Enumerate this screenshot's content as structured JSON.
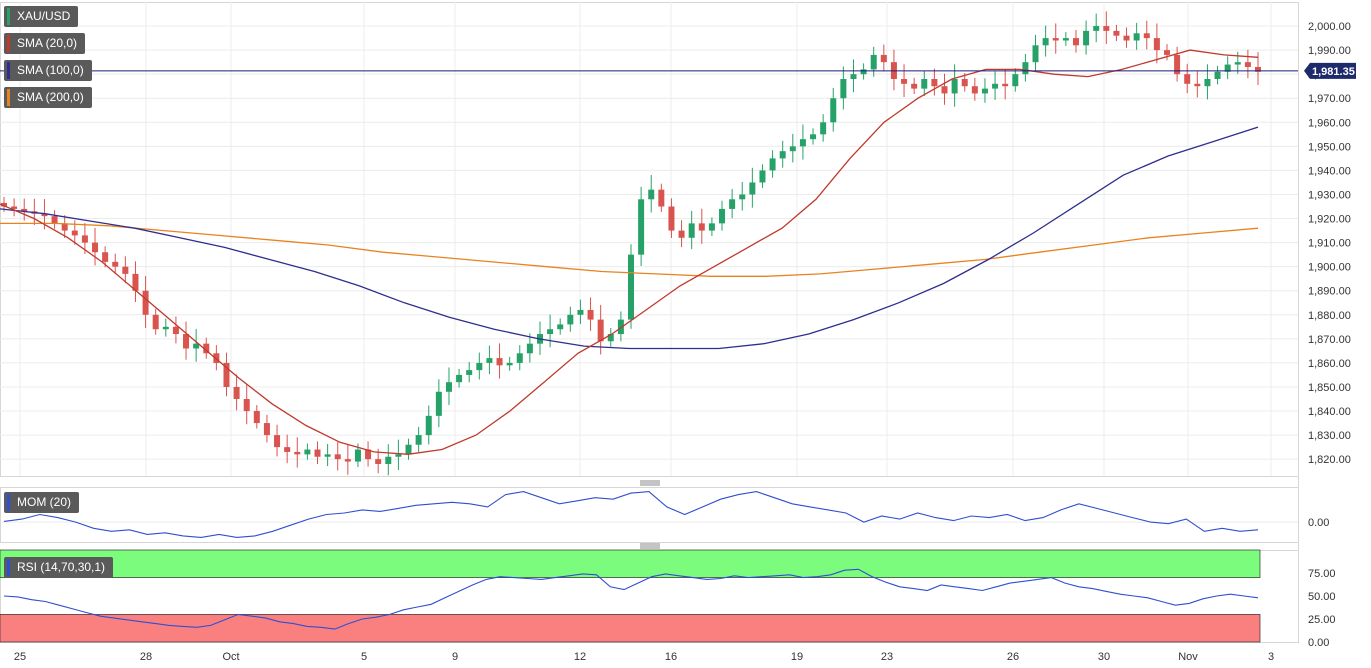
{
  "symbol": "XAU/USD",
  "indicators": {
    "sma20": {
      "label": "SMA (20,0)",
      "color": "#c0392b"
    },
    "sma100": {
      "label": "SMA (100,0)",
      "color": "#2e2e8f"
    },
    "sma200": {
      "label": "SMA (200,0)",
      "color": "#e8831f"
    },
    "mom": {
      "label": "MOM (20)",
      "color": "#2f4fd0"
    },
    "rsi": {
      "label": "RSI (14,70,30,1)",
      "color": "#2f4fd0"
    }
  },
  "colors": {
    "up": "#26a269",
    "down": "#d9534f",
    "rsi_overbought": "#7cfc7c",
    "rsi_oversold": "#fa8080",
    "current_price_line": "#1b1b7a"
  },
  "current_price_label": "1,981.35",
  "chart_data": [
    {
      "type": "candlestick",
      "title": "XAU/USD",
      "x_tick_labels": [
        "25",
        "28",
        "Oct",
        "5",
        "9",
        "12",
        "16",
        "19",
        "23",
        "26",
        "30",
        "Nov",
        "3"
      ],
      "y_tick_labels": [
        "1,820.00",
        "1,830.00",
        "1,840.00",
        "1,850.00",
        "1,860.00",
        "1,870.00",
        "1,880.00",
        "1,890.00",
        "1,900.00",
        "1,910.00",
        "1,920.00",
        "1,930.00",
        "1,940.00",
        "1,950.00",
        "1,960.00",
        "1,970.00",
        "1,980.00",
        "1,990.00",
        "2,000.00"
      ],
      "ylim": [
        1813,
        2010
      ],
      "current_price": 1981.35,
      "close_path": [
        1925,
        1924,
        1923,
        1922,
        1921,
        1918,
        1915,
        1913,
        1910,
        1906,
        1902,
        1900,
        1897,
        1890,
        1880,
        1874,
        1875,
        1872,
        1866,
        1868,
        1864,
        1860,
        1850,
        1845,
        1840,
        1835,
        1830,
        1825,
        1823,
        1822,
        1824,
        1821,
        1822,
        1820,
        1819,
        1824,
        1820,
        1818,
        1821,
        1822,
        1826,
        1830,
        1838,
        1848,
        1852,
        1855,
        1857,
        1860,
        1862,
        1859,
        1860,
        1864,
        1868,
        1872,
        1874,
        1876,
        1880,
        1882,
        1878,
        1869,
        1872,
        1878,
        1905,
        1928,
        1932,
        1925,
        1915,
        1912,
        1918,
        1915,
        1918,
        1924,
        1928,
        1930,
        1935,
        1940,
        1945,
        1948,
        1950,
        1953,
        1955,
        1960,
        1970,
        1978,
        1980,
        1982,
        1988,
        1985,
        1978,
        1976,
        1974,
        1978,
        1975,
        1972,
        1978,
        1975,
        1972,
        1974,
        1976,
        1975,
        1980,
        1985,
        1992,
        1995,
        1994,
        1995,
        1992,
        1998,
        2000,
        1998,
        1996,
        1994,
        1997,
        1995,
        1990,
        1988,
        1980,
        1976,
        1975,
        1978,
        1981,
        1984,
        1985,
        1983,
        1981
      ],
      "series": [
        {
          "name": "SMA (20,0)",
          "values": [
            1926,
            1920,
            1912,
            1902,
            1890,
            1878,
            1866,
            1854,
            1843,
            1834,
            1827,
            1823,
            1822,
            1824,
            1830,
            1840,
            1852,
            1864,
            1872,
            1882,
            1892,
            1900,
            1908,
            1916,
            1928,
            1945,
            1960,
            1970,
            1978,
            1982,
            1982,
            1980,
            1979,
            1982,
            1986,
            1990,
            1988,
            1987
          ]
        },
        {
          "name": "SMA (100,0)",
          "values": [
            1924,
            1922,
            1919,
            1916,
            1912,
            1908,
            1903,
            1898,
            1892,
            1885,
            1879,
            1874,
            1870,
            1867,
            1866,
            1866,
            1866,
            1868,
            1872,
            1878,
            1885,
            1893,
            1903,
            1914,
            1926,
            1938,
            1946,
            1952,
            1958
          ]
        },
        {
          "name": "SMA (200,0)",
          "values": [
            1918,
            1918,
            1917,
            1915,
            1913,
            1911,
            1909,
            1906,
            1904,
            1902,
            1900,
            1898,
            1897,
            1896,
            1896,
            1897,
            1899,
            1901,
            1903,
            1906,
            1909,
            1912,
            1914,
            1916
          ]
        }
      ]
    },
    {
      "type": "line",
      "title": "MOM (20)",
      "y_tick_labels": [
        "0.00"
      ],
      "values": [
        0.05,
        0.2,
        0.5,
        0.3,
        0.0,
        -0.4,
        -0.6,
        -0.5,
        -0.8,
        -0.7,
        -0.9,
        -1.0,
        -0.8,
        -1.0,
        -0.9,
        -0.6,
        -0.2,
        0.2,
        0.5,
        0.6,
        0.8,
        0.7,
        0.9,
        1.1,
        1.2,
        1.3,
        1.2,
        1.0,
        1.8,
        2.0,
        1.6,
        1.2,
        1.4,
        1.6,
        1.5,
        1.9,
        2.0,
        1.0,
        0.5,
        1.0,
        1.5,
        1.8,
        2.0,
        1.6,
        1.2,
        1.0,
        0.8,
        0.6,
        0.0,
        0.4,
        0.2,
        0.6,
        0.3,
        0.1,
        0.4,
        0.3,
        0.5,
        0.1,
        0.3,
        0.8,
        1.2,
        0.9,
        0.6,
        0.3,
        0.0,
        -0.1,
        0.2,
        -0.6,
        -0.4,
        -0.6,
        -0.5
      ]
    },
    {
      "type": "line",
      "title": "RSI (14,70,30,1)",
      "y_tick_labels": [
        "0.00",
        "25.00",
        "50.00",
        "75.00"
      ],
      "ylim": [
        0,
        100
      ],
      "bands": {
        "overbought": 70,
        "oversold": 30
      },
      "values": [
        50,
        49,
        46,
        44,
        40,
        36,
        32,
        28,
        26,
        24,
        22,
        20,
        18,
        17,
        16,
        18,
        24,
        30,
        28,
        26,
        22,
        20,
        17,
        16,
        14,
        20,
        25,
        27,
        30,
        35,
        38,
        41,
        48,
        55,
        62,
        68,
        71,
        70,
        69,
        68,
        70,
        72,
        74,
        73,
        60,
        57,
        64,
        71,
        74,
        72,
        70,
        68,
        69,
        72,
        70,
        71,
        72,
        73,
        70,
        71,
        73,
        78,
        79,
        71,
        65,
        60,
        58,
        56,
        62,
        60,
        58,
        56,
        60,
        64,
        66,
        68,
        70,
        64,
        60,
        58,
        55,
        52,
        50,
        48,
        44,
        40,
        42,
        47,
        50,
        52,
        50,
        48
      ]
    }
  ]
}
